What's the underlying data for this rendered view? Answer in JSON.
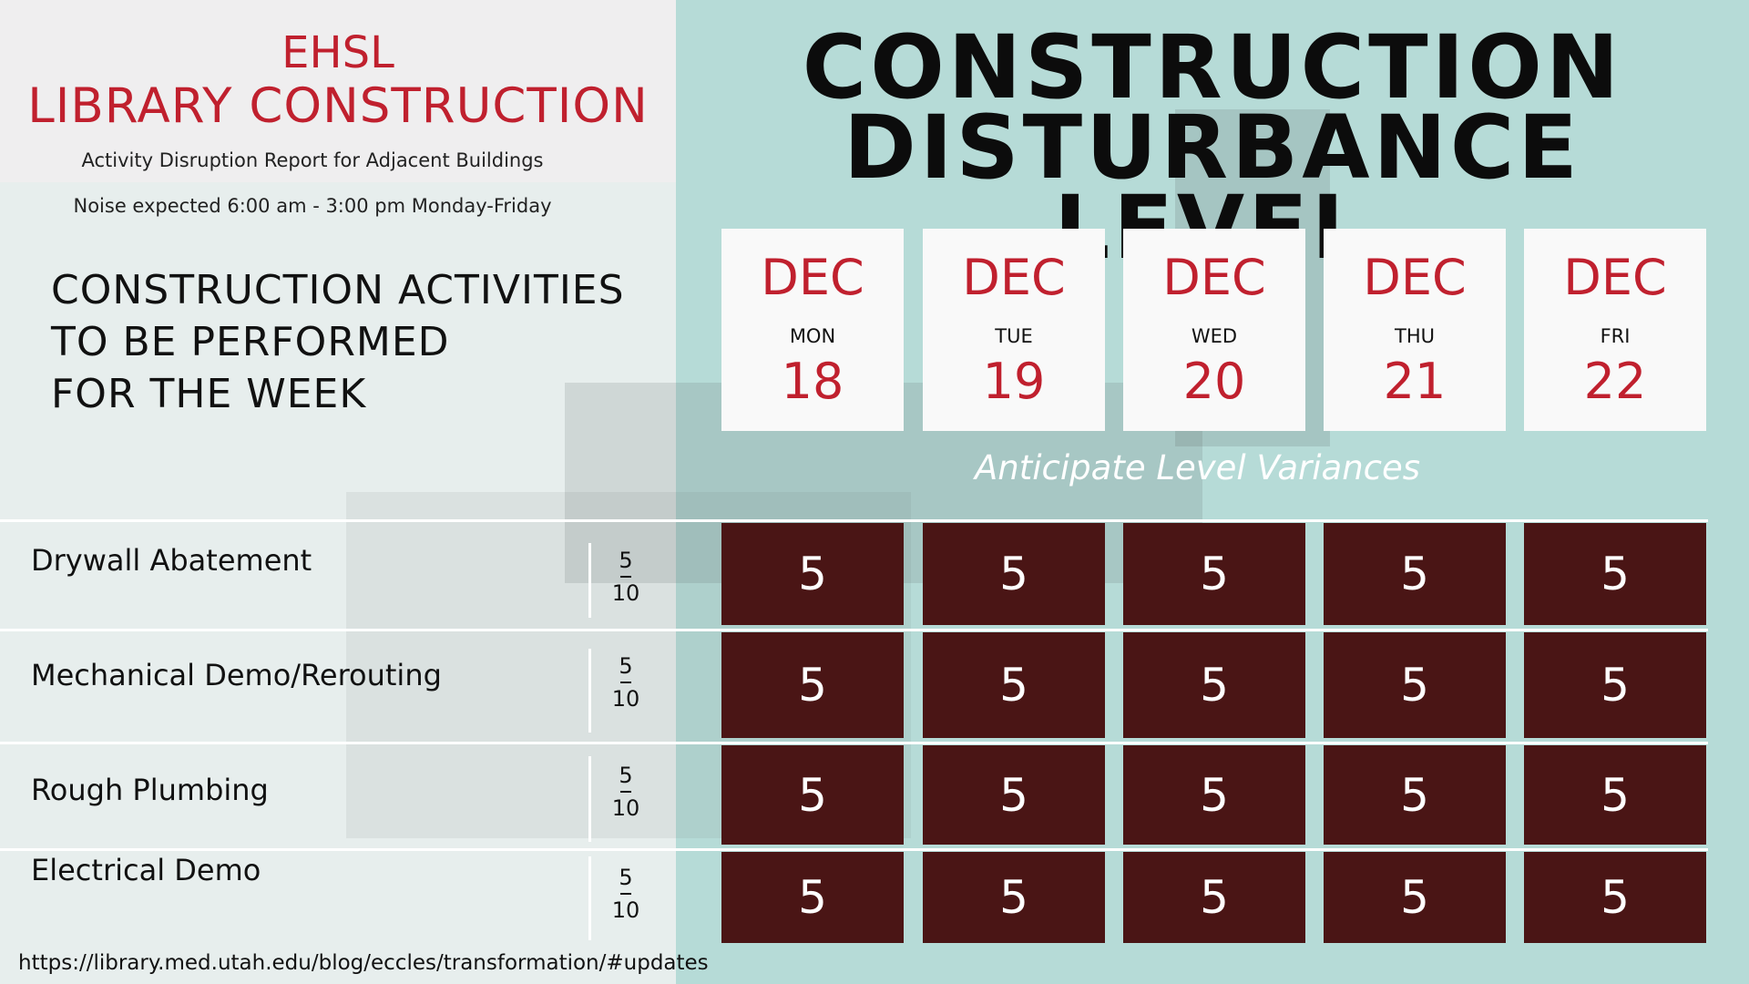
{
  "header": {
    "title_line1": "EHSL",
    "title_line2": "LIBRARY CONSTRUCTION",
    "subtitle": "Activity Disruption Report for Adjacent Buildings",
    "noise_note": "Noise expected 6:00 am - 3:00 pm Monday-Friday"
  },
  "activities_heading": {
    "line1": "CONSTRUCTION ACTIVITIES",
    "line2": "TO BE PERFORMED",
    "line3": "FOR THE WEEK"
  },
  "main_title": {
    "line1": "CONSTRUCTION",
    "line2": "DISTURBANCE LEVEL"
  },
  "days": [
    {
      "month": "DEC",
      "weekday": "MON",
      "date": "18"
    },
    {
      "month": "DEC",
      "weekday": "TUE",
      "date": "19"
    },
    {
      "month": "DEC",
      "weekday": "WED",
      "date": "20"
    },
    {
      "month": "DEC",
      "weekday": "THU",
      "date": "21"
    },
    {
      "month": "DEC",
      "weekday": "FRI",
      "date": "22"
    }
  ],
  "variance_note": "Anticipate Level Variances",
  "activities": [
    {
      "name": "Drywall Abatement",
      "ratio_top": "5",
      "ratio_bottom": "10",
      "levels": [
        "5",
        "5",
        "5",
        "5",
        "5"
      ]
    },
    {
      "name": "Mechanical Demo/Rerouting",
      "ratio_top": "5",
      "ratio_bottom": "10",
      "levels": [
        "5",
        "5",
        "5",
        "5",
        "5"
      ]
    },
    {
      "name": "Rough Plumbing",
      "ratio_top": "5",
      "ratio_bottom": "10",
      "levels": [
        "5",
        "5",
        "5",
        "5",
        "5"
      ]
    },
    {
      "name": "Electrical Demo",
      "ratio_top": "5",
      "ratio_bottom": "10",
      "levels": [
        "5",
        "5",
        "5",
        "5",
        "5"
      ]
    }
  ],
  "footer_url": "https://library.med.utah.edu/blog/eccles/transformation/#updates",
  "colors": {
    "accent_red": "#c0202e",
    "level_cell": "#4a1515",
    "right_panel": "#b6dbd7"
  }
}
